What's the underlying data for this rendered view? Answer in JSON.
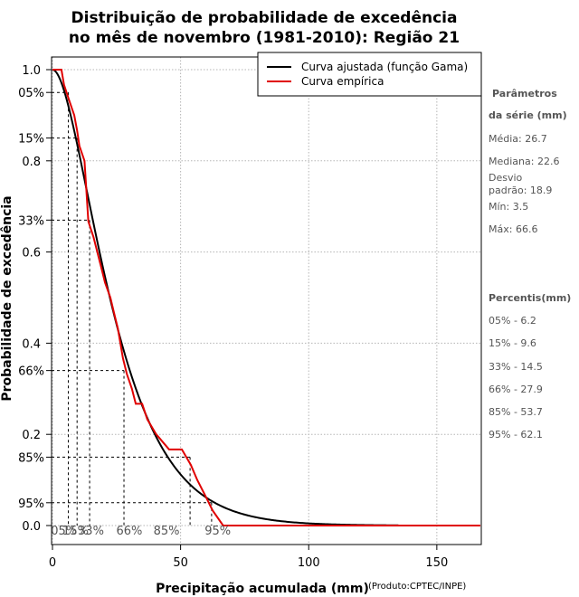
{
  "chart_data": {
    "type": "line",
    "title_line1": "Distribuição de probabilidade de excedência",
    "title_line2": "no mês de novembro (1981-2010): Região 21",
    "xlabel": "Precipitação acumulada (mm)",
    "ylabel": "Probabilidade de excedência",
    "credit": "(Produto:CPTEC/INPE)",
    "xlim": [
      0,
      167
    ],
    "ylim": [
      0,
      1
    ],
    "x_ticks": [
      0,
      50,
      100,
      150
    ],
    "x_tick_labels": [
      "0",
      "50",
      "100",
      "150"
    ],
    "y_ticks": [
      0.0,
      0.2,
      0.4,
      0.6,
      0.8,
      1.0
    ],
    "y_tick_labels": [
      "0.0",
      "0.2",
      "0.4",
      "0.6",
      "0.8",
      "1.0"
    ],
    "gamma_fit": {
      "shape": 2.0,
      "scale": 13.35,
      "x_max": 135
    },
    "series": [
      {
        "name": "Curva ajustada (função Gama)",
        "color": "#000000",
        "kind": "gamma"
      },
      {
        "name": "Curva empírica",
        "color": "#e00000",
        "kind": "step",
        "x": [
          0,
          3.5,
          4.5,
          6.5,
          8.5,
          9.6,
          10.5,
          12.5,
          14.0,
          16.0,
          17.5,
          19.0,
          20.5,
          22.6,
          24.0,
          25.5,
          26.5,
          27.5,
          29.0,
          31.0,
          32.5,
          35.0,
          37.0,
          40.5,
          45.5,
          50.5,
          54.0,
          56.5,
          59.5,
          62.5,
          66.6,
          67.0,
          167
        ],
        "y": [
          1.0,
          1.0,
          0.967,
          0.933,
          0.9,
          0.867,
          0.833,
          0.8,
          0.667,
          0.633,
          0.6,
          0.567,
          0.533,
          0.5,
          0.467,
          0.433,
          0.4,
          0.367,
          0.333,
          0.3,
          0.267,
          0.267,
          0.233,
          0.2,
          0.167,
          0.167,
          0.133,
          0.1,
          0.067,
          0.033,
          0.0,
          0.0,
          0.0
        ]
      }
    ],
    "percentile_lines": [
      {
        "label": "05%",
        "p": 0.05,
        "x": 6.2
      },
      {
        "label": "15%",
        "p": 0.15,
        "x": 9.6
      },
      {
        "label": "33%",
        "p": 0.33,
        "x": 14.5
      },
      {
        "label": "66%",
        "p": 0.66,
        "x": 27.9
      },
      {
        "label": "85%",
        "p": 0.85,
        "x": 53.7
      },
      {
        "label": "95%",
        "p": 0.95,
        "x": 62.1
      }
    ],
    "x_pct_markers": [
      {
        "label": "05%",
        "x": 4.5
      },
      {
        "label": "15%",
        "x": 9.0
      },
      {
        "label": "33%",
        "x": 15.0
      },
      {
        "label": "66%",
        "x": 30.0
      },
      {
        "label": "85%",
        "x": 44.5
      },
      {
        "label": "95%",
        "x": 64.5
      }
    ],
    "legend_position": "top-right"
  },
  "side_panel": {
    "params_heading_1": "Parâmetros",
    "params_heading_2": "da série (mm)",
    "media": "Média: 26.7",
    "mediana": "Mediana: 22.6",
    "desvio_1": "Desvio",
    "desvio_2": "padrão: 18.9",
    "min": "Mín: 3.5",
    "max": "Máx: 66.6",
    "percentis_heading": "Percentis(mm)",
    "percentis": [
      "05% - 6.2",
      "15% - 9.6",
      "33% - 14.5",
      "66% - 27.9",
      "85% - 53.7",
      "95% - 62.1"
    ]
  }
}
